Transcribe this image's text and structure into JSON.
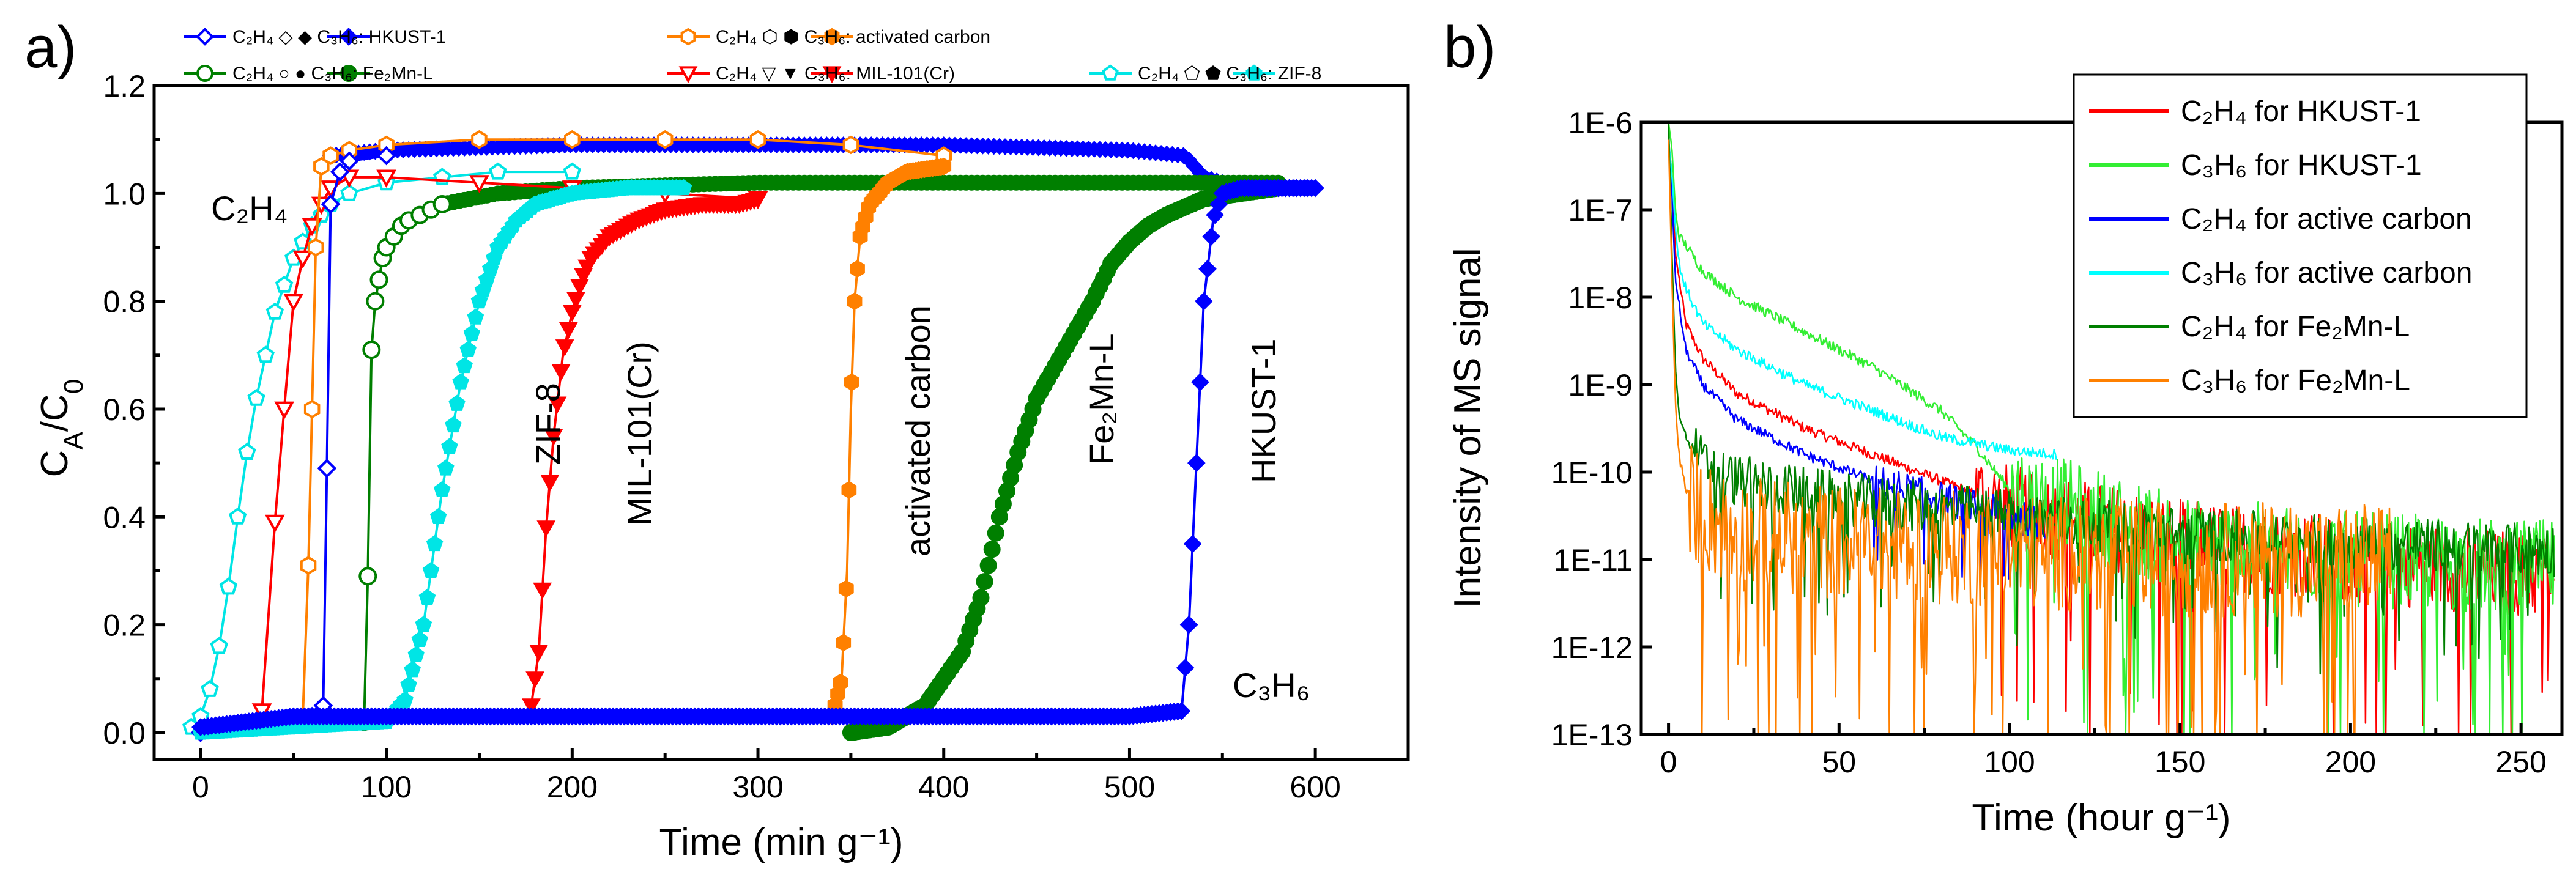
{
  "chart_data": [
    {
      "panel": "a)",
      "type": "scatter",
      "xlabel": "Time (min g⁻¹)",
      "ylabel": "C_A/C_0",
      "xlim": [
        -25,
        650
      ],
      "ylim": [
        -0.05,
        1.2
      ],
      "xticks": [
        0,
        100,
        200,
        300,
        400,
        500,
        600
      ],
      "yticks": [
        0.0,
        0.2,
        0.4,
        0.6,
        0.8,
        1.0,
        1.2
      ],
      "xtick_labels": [
        "0",
        "100",
        "200",
        "300",
        "400",
        "500",
        "600"
      ],
      "ytick_labels": [
        "0.0",
        "0.2",
        "0.4",
        "0.6",
        "0.8",
        "1.0",
        "1.2"
      ],
      "legend": [
        {
          "name": "C₂H₄ / C₃H₆: HKUST-1",
          "label": "C₂H₄ ◇ ◆ C₃H₆: HKUST-1",
          "color": "#0000ff"
        },
        {
          "name": "C₂H₄ / C₃H₆: activated carbon",
          "label": "C₂H₄ ⬡ ⬢ C₃H₆: activated carbon",
          "color": "#ff8000"
        },
        {
          "name": "C₂H₄ / C₃H₆: Fe₂Mn-L",
          "label": "C₂H₄ ○ ● C₃H₆: Fe₂Mn-L",
          "color": "#007f00"
        },
        {
          "name": "C₂H₄ / C₃H₆: MIL-101(Cr)",
          "label": "C₂H₄ ▽ ▼ C₃H₆: MIL-101(Cr)",
          "color": "#ff0000"
        },
        {
          "name": "C₂H₄ / C₃H₆: ZIF-8",
          "label": "C₂H₄ ⬠ ⬟ C₃H₆: ZIF-8",
          "color": "#00e5e5"
        }
      ],
      "annotations": {
        "c2h4": "C₂H₄",
        "c3h6": "C₃H₆",
        "zif8": "ZIF-8",
        "mil101": "MIL-101(Cr)",
        "activated_carbon": "activated carbon",
        "fe2mnl": "Fe₂Mn-L",
        "hkust1": "HKUST-1"
      },
      "series": [
        {
          "name": "C2H4 ZIF-8",
          "gas": "C2H4",
          "material": "ZIF-8",
          "color": "#00e5e5",
          "marker": "pentagon",
          "filled": false,
          "x": [
            -5,
            0,
            5,
            10,
            15,
            20,
            25,
            30,
            35,
            40,
            45,
            50,
            55,
            60,
            65,
            70,
            80,
            100,
            130,
            160,
            200
          ],
          "y": [
            0.01,
            0.03,
            0.08,
            0.16,
            0.27,
            0.4,
            0.52,
            0.62,
            0.7,
            0.78,
            0.83,
            0.88,
            0.91,
            0.94,
            0.96,
            0.98,
            1.0,
            1.02,
            1.03,
            1.04,
            1.04
          ]
        },
        {
          "name": "C2H4 MIL-101(Cr)",
          "gas": "C2H4",
          "material": "MIL-101(Cr)",
          "color": "#ff0000",
          "marker": "triangle-down",
          "filled": false,
          "x": [
            33,
            40,
            45,
            50,
            55,
            60,
            65,
            70,
            80,
            100,
            150,
            200,
            250,
            300
          ],
          "y": [
            0.04,
            0.39,
            0.6,
            0.8,
            0.88,
            0.94,
            0.98,
            1.01,
            1.03,
            1.03,
            1.02,
            1.01,
            1.0,
            0.99
          ]
        },
        {
          "name": "C2H4 activated carbon",
          "gas": "C2H4",
          "material": "activated carbon",
          "color": "#ff8000",
          "marker": "hexagon",
          "filled": false,
          "x": [
            55,
            58,
            60,
            62,
            65,
            70,
            80,
            100,
            150,
            200,
            250,
            300,
            350,
            400
          ],
          "y": [
            0.03,
            0.31,
            0.6,
            0.9,
            1.05,
            1.07,
            1.08,
            1.09,
            1.1,
            1.1,
            1.1,
            1.1,
            1.09,
            1.07
          ]
        },
        {
          "name": "C2H4 HKUST-1",
          "gas": "C2H4",
          "material": "HKUST-1",
          "color": "#0000ff",
          "marker": "diamond",
          "filled": false,
          "x": [
            0,
            30,
            60,
            66,
            68,
            70,
            75,
            80,
            100
          ],
          "y": [
            0.0,
            0.01,
            0.03,
            0.05,
            0.49,
            0.98,
            1.04,
            1.06,
            1.07
          ]
        },
        {
          "name": "C2H4 Fe2Mn-L",
          "gas": "C2H4",
          "material": "Fe2Mn-L",
          "color": "#007f00",
          "marker": "circle",
          "filled": false,
          "x": [
            88,
            90,
            92,
            94,
            96,
            98,
            100,
            104,
            108,
            112,
            118,
            124,
            130
          ],
          "y": [
            0.02,
            0.29,
            0.71,
            0.8,
            0.84,
            0.88,
            0.9,
            0.92,
            0.94,
            0.95,
            0.96,
            0.97,
            0.98
          ]
        },
        {
          "name": "C3H6 ZIF-8",
          "gas": "C3H6",
          "material": "ZIF-8",
          "color": "#00e5e5",
          "marker": "pentagon",
          "filled": true,
          "x": [
            0,
            50,
            100,
            110,
            120,
            130,
            140,
            150,
            160,
            170,
            180,
            200,
            230,
            260
          ],
          "y": [
            0.0,
            0.01,
            0.02,
            0.06,
            0.2,
            0.45,
            0.65,
            0.8,
            0.9,
            0.95,
            0.98,
            1.0,
            1.01,
            1.01
          ]
        },
        {
          "name": "C3H6 MIL-101(Cr)",
          "gas": "C3H6",
          "material": "MIL-101(Cr)",
          "color": "#ff0000",
          "marker": "triangle-down",
          "filled": true,
          "x": [
            178,
            182,
            186,
            190,
            195,
            200,
            205,
            210,
            220,
            235,
            250,
            270,
            290,
            300
          ],
          "y": [
            0.05,
            0.15,
            0.38,
            0.55,
            0.7,
            0.78,
            0.84,
            0.88,
            0.92,
            0.95,
            0.97,
            0.98,
            0.98,
            0.99
          ]
        },
        {
          "name": "C3H6 activated carbon",
          "gas": "C3H6",
          "material": "activated carbon",
          "color": "#ff8000",
          "marker": "hexagon",
          "filled": true,
          "x": [
            340,
            345,
            348,
            350,
            352,
            355,
            360,
            370,
            380,
            400
          ],
          "y": [
            0.03,
            0.1,
            0.3,
            0.6,
            0.8,
            0.92,
            0.98,
            1.02,
            1.04,
            1.05
          ]
        },
        {
          "name": "C3H6 Fe2Mn-L",
          "gas": "C3H6",
          "material": "Fe2Mn-L",
          "color": "#007f00",
          "marker": "circle",
          "filled": true,
          "x": [
            350,
            370,
            390,
            410,
            420,
            430,
            440,
            450,
            460,
            470,
            480,
            490,
            500,
            510,
            520,
            540,
            560,
            580
          ],
          "y": [
            0.0,
            0.01,
            0.05,
            0.15,
            0.25,
            0.4,
            0.52,
            0.62,
            0.68,
            0.74,
            0.8,
            0.87,
            0.91,
            0.94,
            0.96,
            0.99,
            1.0,
            1.01
          ]
        },
        {
          "name": "C3H6 HKUST-1",
          "gas": "C3H6",
          "material": "HKUST-1",
          "color": "#0000ff",
          "marker": "diamond",
          "filled": true,
          "x": [
            0,
            50,
            100,
            200,
            300,
            400,
            500,
            528,
            532,
            536,
            540,
            545,
            550,
            560,
            580,
            600
          ],
          "y": [
            0.01,
            0.03,
            0.03,
            0.03,
            0.03,
            0.03,
            0.03,
            0.04,
            0.2,
            0.5,
            0.8,
            0.95,
            1.0,
            1.01,
            1.01,
            1.01
          ]
        }
      ],
      "plateaus": [
        {
          "name": "HKUST-1 C2H4 plateau",
          "color": "#0000ff",
          "x": [
            70,
            100,
            200,
            300,
            400,
            500,
            530,
            540,
            560,
            600
          ],
          "y": [
            1.07,
            1.08,
            1.09,
            1.09,
            1.09,
            1.08,
            1.07,
            1.03,
            1.01,
            1.01
          ]
        },
        {
          "name": "Fe2Mn-L C2H4 plateau",
          "color": "#007f00",
          "x": [
            130,
            160,
            200,
            300,
            400,
            500,
            580
          ],
          "y": [
            0.98,
            1.0,
            1.01,
            1.02,
            1.02,
            1.02,
            1.02
          ]
        }
      ]
    },
    {
      "panel": "b)",
      "type": "line",
      "xlabel": "Time (hour g⁻¹)",
      "ylabel": "Intensity of MS signal",
      "xlim": [
        -8,
        262
      ],
      "ylim_log": [
        -13,
        -6
      ],
      "xticks": [
        0,
        50,
        100,
        150,
        200,
        250
      ],
      "xtick_labels": [
        "0",
        "50",
        "100",
        "150",
        "200",
        "250"
      ],
      "ytick_labels": [
        "1E-6",
        "1E-7",
        "1E-8",
        "1E-9",
        "1E-10",
        "1E-11",
        "1E-12",
        "1E-13"
      ],
      "ytick_exponents": [
        -6,
        -7,
        -8,
        -9,
        -10,
        -11,
        -12,
        -13
      ],
      "legend": [
        {
          "label": "C₂H₄ for HKUST-1",
          "color": "#ff0000"
        },
        {
          "label": "C₃H₆ for HKUST-1",
          "color": "#33ee33"
        },
        {
          "label": "C₂H₄ for active carbon",
          "color": "#0000ff"
        },
        {
          "label": "C₃H₆ for active carbon",
          "color": "#00ffff"
        },
        {
          "label": "C₂H₄ for Fe₂Mn-L",
          "color": "#007f00"
        },
        {
          "label": "C₃H₆ for Fe₂Mn-L",
          "color": "#ff8000"
        }
      ],
      "series": [
        {
          "name": "C2H4 for HKUST-1",
          "color": "#ff0000",
          "x": [
            0,
            1,
            2,
            5,
            10,
            20,
            40,
            60,
            80,
            100,
            150,
            200,
            260
          ],
          "log10y": [
            -6.2,
            -6.6,
            -7.5,
            -8.3,
            -8.7,
            -9.1,
            -9.5,
            -9.8,
            -10.1,
            -10.4,
            -10.8,
            -11.0,
            -11.2
          ],
          "noise_start": 90,
          "noise_amp": 0.9
        },
        {
          "name": "C3H6 for HKUST-1",
          "color": "#33ee33",
          "x": [
            0,
            1,
            2,
            3,
            5,
            10,
            20,
            40,
            60,
            80,
            90,
            100,
            150,
            200,
            260
          ],
          "log10y": [
            -6.0,
            -6.3,
            -7.0,
            -7.3,
            -7.4,
            -7.7,
            -8.0,
            -8.4,
            -8.8,
            -9.3,
            -9.7,
            -10.2,
            -10.8,
            -11.0,
            -11.1
          ],
          "noise_start": 100,
          "noise_amp": 1.0
        },
        {
          "name": "C2H4 for active carbon",
          "color": "#0000ff",
          "x": [
            0,
            1,
            2,
            5,
            10,
            20,
            40,
            60,
            80,
            100,
            112
          ],
          "log10y": [
            -6.2,
            -6.8,
            -7.8,
            -8.6,
            -9.0,
            -9.4,
            -9.8,
            -10.1,
            -10.3,
            -10.5,
            -10.6
          ],
          "noise_start": 60,
          "noise_amp": 0.35
        },
        {
          "name": "C3H6 for active carbon",
          "color": "#00ffff",
          "x": [
            0,
            1,
            2,
            3,
            5,
            10,
            20,
            40,
            60,
            80,
            100,
            114
          ],
          "log10y": [
            -6.2,
            -6.6,
            -7.2,
            -7.6,
            -7.9,
            -8.3,
            -8.6,
            -9.0,
            -9.3,
            -9.6,
            -9.75,
            -9.8
          ],
          "noise_start": 200,
          "noise_amp": 0
        },
        {
          "name": "C2H4 for Fe2Mn-L",
          "color": "#007f00",
          "x": [
            0,
            1,
            2,
            3,
            5,
            10,
            20,
            50,
            100,
            150,
            200,
            260
          ],
          "log10y": [
            -6.0,
            -7.5,
            -8.8,
            -9.3,
            -9.6,
            -9.9,
            -10.1,
            -10.3,
            -10.5,
            -10.7,
            -10.8,
            -10.9
          ],
          "noise_start": 8,
          "noise_amp": 0.55
        },
        {
          "name": "C3H6 for Fe2Mn-L",
          "color": "#ff8000",
          "x": [
            0,
            1,
            2,
            3,
            5,
            10,
            20,
            50,
            100,
            150,
            200,
            212
          ],
          "log10y": [
            -6.2,
            -7.8,
            -9.2,
            -9.8,
            -10.2,
            -10.5,
            -10.7,
            -10.8,
            -10.9,
            -11.0,
            -11.0,
            -11.0
          ],
          "noise_start": 6,
          "noise_amp": 1.2
        }
      ]
    }
  ]
}
